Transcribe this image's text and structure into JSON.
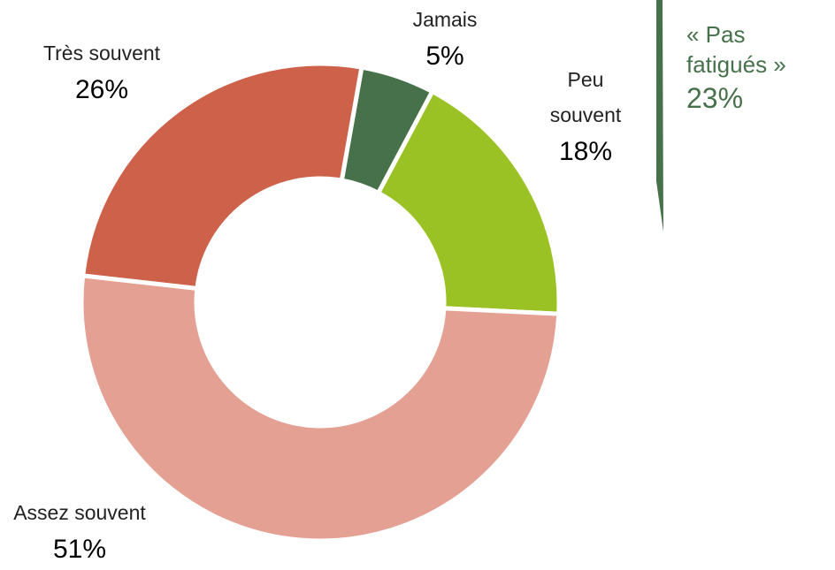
{
  "chart_data": {
    "type": "donut",
    "categories": [
      "Jamais",
      "Peu souvent",
      "Assez souvent",
      "Très souvent"
    ],
    "values": [
      5,
      18,
      51,
      26
    ],
    "value_labels": [
      "5%",
      "18%",
      "51%",
      "26%"
    ],
    "colors": [
      "#47714b",
      "#9bc224",
      "#e3a093",
      "#cd614a"
    ],
    "annotation": {
      "text": "« Pas fatigués »",
      "value": "23%",
      "color": "#47714b"
    }
  }
}
